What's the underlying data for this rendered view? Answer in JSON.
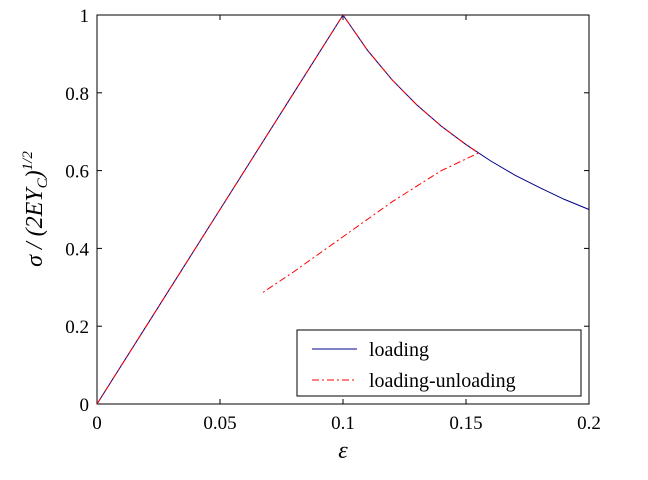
{
  "chart_data": {
    "type": "line",
    "xlabel": "ε",
    "ylabel": {
      "text": "σ / (2EY",
      "subscript": "C",
      "close": ")",
      "superscript": "1/2"
    },
    "xlim": [
      0,
      0.2
    ],
    "ylim": [
      0,
      1
    ],
    "x_ticks": [
      0,
      0.05,
      0.1,
      0.15,
      0.2
    ],
    "x_tick_labels": [
      "0",
      "0.05",
      "0.1",
      "0.15",
      "0.2"
    ],
    "y_ticks": [
      0,
      0.2,
      0.4,
      0.6,
      0.8,
      1
    ],
    "y_tick_labels": [
      "0",
      "0.2",
      "0.4",
      "0.6",
      "0.8",
      "1"
    ],
    "grid": false,
    "legend_position": "bottom-right",
    "series": [
      {
        "name": "loading",
        "color": "#00008b",
        "dash": "solid",
        "x": [
          0,
          0.02,
          0.04,
          0.06,
          0.08,
          0.1,
          0.11,
          0.12,
          0.13,
          0.14,
          0.15,
          0.16,
          0.17,
          0.18,
          0.19,
          0.2
        ],
        "y": [
          0,
          0.2,
          0.4,
          0.6,
          0.8,
          1.0,
          0.909,
          0.833,
          0.769,
          0.714,
          0.667,
          0.625,
          0.588,
          0.556,
          0.526,
          0.5
        ]
      },
      {
        "name": "loading-unloading",
        "color": "#ff0000",
        "dash": "dashdot",
        "x": [
          0,
          0.02,
          0.04,
          0.06,
          0.08,
          0.1,
          0.11,
          0.12,
          0.13,
          0.14,
          0.15,
          0.155,
          0.14,
          0.12,
          0.1,
          0.08,
          0.067
        ],
        "y": [
          0,
          0.2,
          0.4,
          0.6,
          0.8,
          1.0,
          0.909,
          0.833,
          0.769,
          0.714,
          0.667,
          0.645,
          0.6,
          0.52,
          0.43,
          0.34,
          0.285
        ]
      }
    ]
  }
}
